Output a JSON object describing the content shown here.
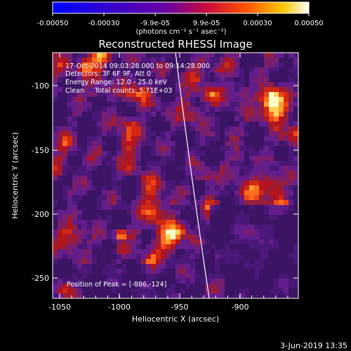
{
  "colorbar": {
    "ticks": [
      "-0.00050",
      "-0.00030",
      "-9.9e-05",
      "9.9e-05",
      "0.00030",
      "0.00050"
    ],
    "units": "(photons cm⁻² s⁻¹ asec⁻²)"
  },
  "plot": {
    "title": "Reconstructed RHESSI Image",
    "info_lines": [
      "17-Oct-2014 09:03:28.000 to 09:14:28.000",
      "Detectors: 3F 6F 9F, Att 0",
      "Energy Range: 12.0 - 25.0 keV",
      "Clean     Total counts: 5.71E+03"
    ],
    "peak_label": "Position of Peak = [-886,-124]",
    "xlabel": "Heliocentric X (arcsec)",
    "ylabel": "Heliocentric Y (arcsec)",
    "x_ticks": [
      "-1050",
      "-1000",
      "-950",
      "-900"
    ],
    "y_ticks": [
      "-100",
      "-150",
      "-200",
      "-250"
    ]
  },
  "footer": {
    "date": "3-Jun-2019 13:35"
  },
  "colors": {
    "background": "#000000",
    "text": "#ffffff"
  }
}
